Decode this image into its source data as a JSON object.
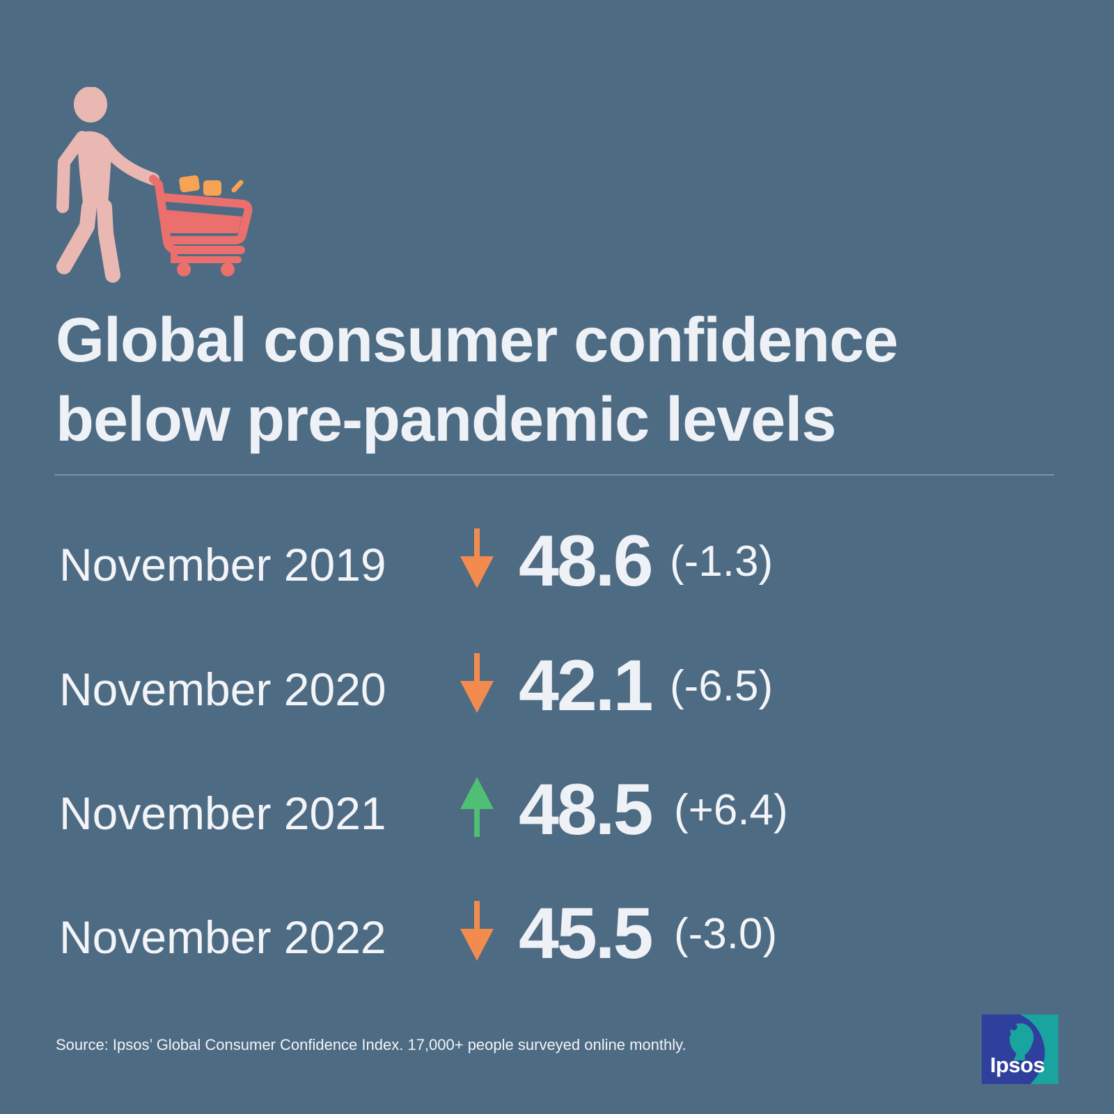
{
  "title_lines": [
    "Global consumer confidence",
    "below pre-pandemic levels"
  ],
  "icon": "shopper-with-cart-icon",
  "colors": {
    "background": "#4e6b84",
    "decrease_arrow": "#f28c4e",
    "increase_arrow": "#4fbf73",
    "figure": "#e9b8b2",
    "cart": "#ea6f6d",
    "cart_items": "#f8a253"
  },
  "chart_data": {
    "type": "table",
    "title": "Global consumer confidence below pre-pandemic levels",
    "columns": [
      "period",
      "direction",
      "index",
      "change"
    ],
    "rows": [
      {
        "period": "November 2019",
        "direction": "down",
        "value": 48.6,
        "value_label": "48.6",
        "change": -1.3,
        "change_label": "(-1.3)"
      },
      {
        "period": "November 2020",
        "direction": "down",
        "value": 42.1,
        "value_label": "42.1",
        "change": -6.5,
        "change_label": "(-6.5)"
      },
      {
        "period": "November 2021",
        "direction": "up",
        "value": 48.5,
        "value_label": "48.5",
        "change": 6.4,
        "change_label": "(+6.4)"
      },
      {
        "period": "November 2022",
        "direction": "down",
        "value": 45.5,
        "value_label": "45.5",
        "change": -3.0,
        "change_label": "(-3.0)"
      }
    ]
  },
  "source": "Source: Ipsos’ Global Consumer Confidence Index. 17,000+ people surveyed online monthly.",
  "logo": {
    "text": "Ipsos",
    "icon": "ipsos-logo-icon"
  }
}
